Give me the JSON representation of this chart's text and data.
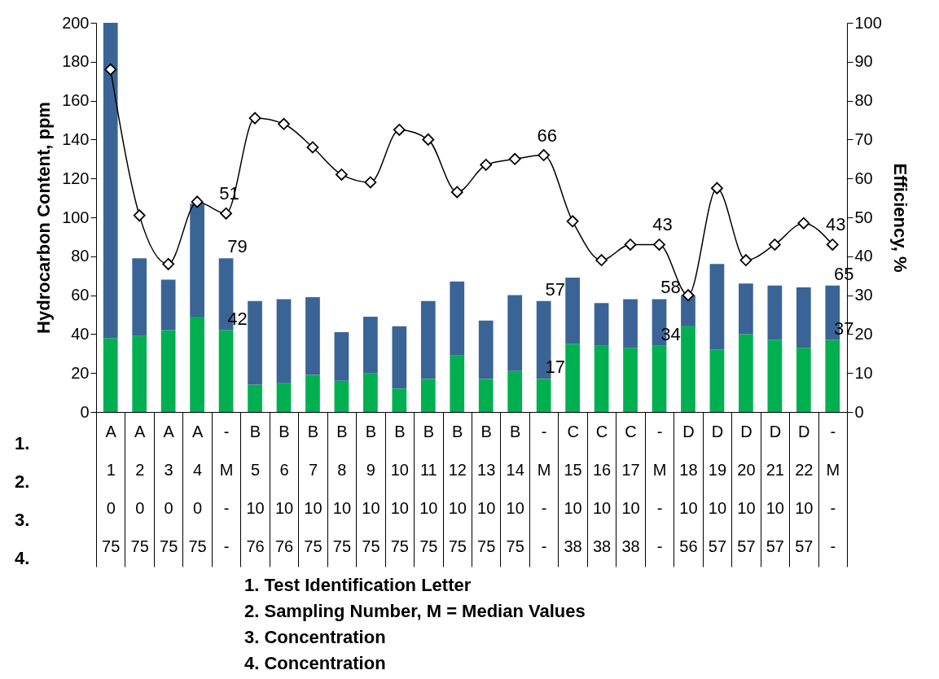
{
  "chart_data": {
    "type": "bar",
    "stacked": true,
    "ylabel": "Hydrocarbon Content, ppm",
    "y2label": "Efficiency, %",
    "categories": [
      "A\n1\n0\n75",
      "A\n2\n0\n75",
      "A\n3\n0\n75",
      "A\n4\n0\n75",
      "-\nM\n-\n-",
      "B\n5\n10\n76",
      "B\n6\n10\n76",
      "B\n7\n10\n75",
      "B\n8\n10\n75",
      "B\n9\n10\n75",
      "B\n10\n10\n75",
      "B\n11\n10\n75",
      "B\n12\n10\n75",
      "B\n13\n10\n75",
      "B\n14\n10\n75",
      "-\nM\n-\n-",
      "C\n15\n10\n38",
      "C\n16\n10\n38",
      "C\n17\n10\n38",
      "-\nM\n-\n-",
      "D\n18\n10\n56",
      "D\n19\n10\n57",
      "D\n20\n10\n57",
      "D\n21\n10\n57",
      "D\n22\n10\n57",
      "-\nM\n-\n-"
    ],
    "series": [
      {
        "color": "#00b050",
        "values": [
          38,
          39,
          42,
          49,
          42,
          14,
          15,
          19,
          16,
          20,
          12,
          17,
          29,
          17,
          21,
          17,
          35,
          34,
          33,
          34,
          44,
          32,
          40,
          37,
          33,
          37
        ],
        "value_labels": [
          null,
          null,
          null,
          null,
          "42",
          null,
          null,
          null,
          null,
          null,
          null,
          null,
          null,
          null,
          null,
          "17",
          null,
          null,
          null,
          "34",
          null,
          null,
          null,
          null,
          null,
          "37"
        ]
      },
      {
        "color": "#3b6496",
        "values": [
          162,
          40,
          26,
          58,
          37,
          43,
          43,
          40,
          25,
          29,
          32,
          40,
          38,
          30,
          39,
          40,
          34,
          22,
          25,
          24,
          16,
          44,
          26,
          28,
          31,
          28
        ]
      },
      {
        "type": "line",
        "axis": "y2",
        "color": "#000000",
        "values": [
          88,
          50.5,
          38,
          54,
          51,
          75.5,
          74,
          68,
          61,
          59,
          72.5,
          70,
          56.5,
          63.5,
          65,
          66,
          49,
          39,
          43,
          43,
          30,
          57.5,
          39,
          43,
          48.5,
          43
        ],
        "value_labels": [
          null,
          null,
          null,
          null,
          "51",
          null,
          null,
          null,
          null,
          null,
          null,
          null,
          null,
          null,
          null,
          "66",
          null,
          null,
          null,
          "43",
          null,
          null,
          null,
          null,
          null,
          "43"
        ]
      }
    ],
    "totals": [
      null,
      null,
      null,
      null,
      "79",
      null,
      null,
      null,
      null,
      null,
      null,
      null,
      null,
      null,
      null,
      "57",
      null,
      null,
      null,
      "58",
      null,
      null,
      null,
      null,
      null,
      "65"
    ],
    "ylim": [
      0,
      200
    ],
    "yticks": [
      0,
      20,
      40,
      60,
      80,
      100,
      120,
      140,
      160,
      180,
      200
    ],
    "y2lim": [
      0,
      100
    ],
    "y2ticks": [
      0,
      10,
      20,
      30,
      40,
      50,
      60,
      70,
      80,
      90,
      100
    ],
    "marker": "diamond",
    "grid": false,
    "annotations": [
      "1.",
      "2.",
      "3.",
      "4.",
      "1. Test Identification Letter",
      "2. Sampling Number, M = Median Values",
      "3. Concentration",
      "4. Concentration"
    ]
  }
}
